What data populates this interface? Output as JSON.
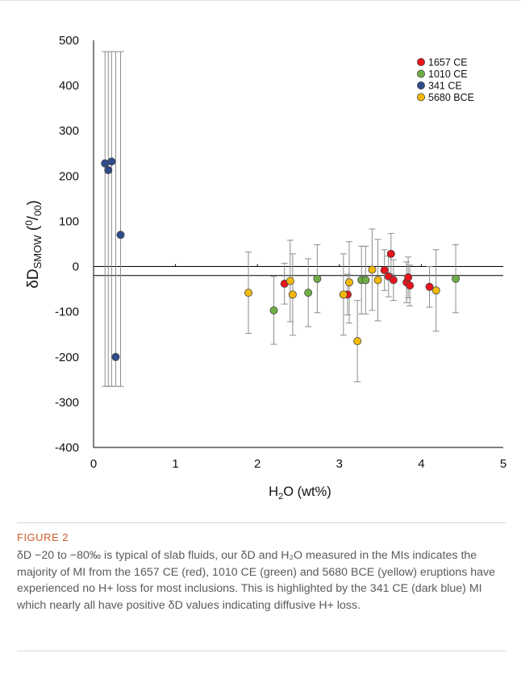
{
  "chart_data": {
    "type": "scatter",
    "xlabel": "H₂O (wt%)",
    "ylabel": "δD",
    "ylabel_sub": "SMOW",
    "ylabel_unit_open": " (",
    "ylabel_unit_sup": "0",
    "ylabel_unit_rest": "/",
    "ylabel_unit_sub": "00",
    "ylabel_unit_close": ")",
    "xlim": [
      0,
      5
    ],
    "ylim": [
      -400,
      500
    ],
    "x_ticks": [
      "0",
      "1",
      "2",
      "3",
      "4",
      "5"
    ],
    "y_ticks": [
      "-400",
      "-300",
      "-200",
      "-100",
      "0",
      "100",
      "200",
      "300",
      "400",
      "500"
    ],
    "reference_lines": [
      0,
      -20
    ],
    "legend_position": "top-right",
    "series": [
      {
        "name": "1657 CE",
        "color": "#e8141c",
        "points": [
          [
            2.33,
            -38
          ],
          [
            3.1,
            -62
          ],
          [
            3.55,
            -8
          ],
          [
            3.6,
            -22
          ],
          [
            3.63,
            28
          ],
          [
            3.66,
            -30
          ],
          [
            3.82,
            -35
          ],
          [
            3.84,
            -24
          ],
          [
            3.86,
            -42
          ],
          [
            4.1,
            -45
          ]
        ],
        "error": 45
      },
      {
        "name": "1010 CE",
        "color": "#70ad47",
        "points": [
          [
            2.2,
            -97
          ],
          [
            2.62,
            -58
          ],
          [
            2.73,
            -27
          ],
          [
            3.27,
            -30
          ],
          [
            3.32,
            -30
          ],
          [
            4.42,
            -27
          ]
        ],
        "error": 75
      },
      {
        "name": "341 CE",
        "color": "#2e4b8b",
        "points": [
          [
            0.14,
            228
          ],
          [
            0.18,
            213
          ],
          [
            0.22,
            232
          ],
          [
            0.27,
            -200
          ],
          [
            0.33,
            70
          ]
        ],
        "error": 0,
        "band": [
          -265,
          475
        ]
      },
      {
        "name": "5680 BCE",
        "color": "#f2b90c",
        "points": [
          [
            1.89,
            -58
          ],
          [
            2.4,
            -32
          ],
          [
            2.43,
            -62
          ],
          [
            3.05,
            -62
          ],
          [
            3.12,
            -35
          ],
          [
            3.22,
            -165
          ],
          [
            3.4,
            -7
          ],
          [
            3.47,
            -30
          ],
          [
            4.18,
            -53
          ]
        ],
        "error": 90
      }
    ]
  },
  "caption": {
    "label": "FIGURE 2",
    "text": "δD −20 to −80‰ is typical of slab fluids, our δD and H₂O measured in the MIs indicates the majority of MI from the 1657 CE (red), 1010 CE (green) and 5680 BCE (yellow) eruptions have experienced no H+ loss for most inclusions. This is highlighted by the 341 CE (dark blue) MI which nearly all have positive δD values indicating diffusive H+ loss."
  }
}
